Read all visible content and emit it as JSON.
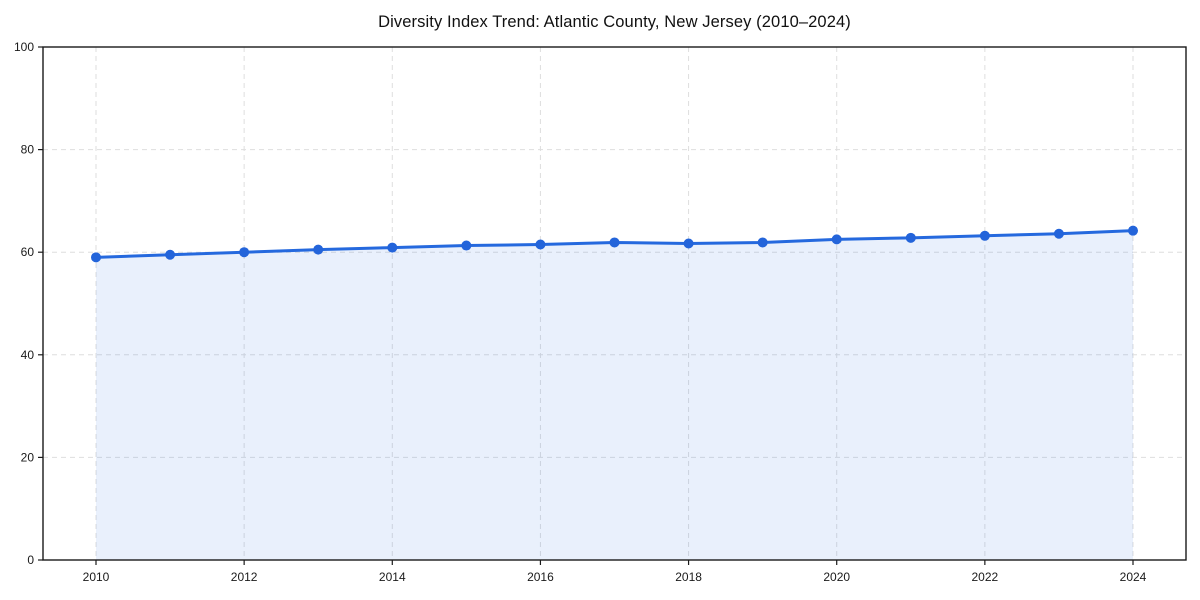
{
  "chart_data": {
    "type": "line",
    "title": "Diversity Index Trend: Atlantic County, New Jersey (2010–2024)",
    "x": [
      2010,
      2011,
      2012,
      2013,
      2014,
      2015,
      2016,
      2017,
      2018,
      2019,
      2020,
      2021,
      2022,
      2023,
      2024
    ],
    "values": [
      59.0,
      59.5,
      60.0,
      60.5,
      60.9,
      61.3,
      61.5,
      61.9,
      61.7,
      61.9,
      62.5,
      62.8,
      63.2,
      63.6,
      64.2
    ],
    "xlabel": "",
    "ylabel": "",
    "ylim": [
      0,
      100
    ],
    "xticks": [
      2010,
      2012,
      2014,
      2016,
      2018,
      2020,
      2022,
      2024
    ],
    "yticks": [
      0,
      20,
      40,
      60,
      80,
      100
    ],
    "grid": true,
    "grid_style": "dashed",
    "legend_position": "none",
    "area_fill_under_line": true,
    "colors": {
      "line": "#2569de",
      "marker": "#2364da",
      "fill": "rgba(37, 105, 222, 0.10)",
      "grid": "#dedede",
      "spine": "#1a1a1a",
      "tick_label": "#1a1a1a",
      "background": "#ffffff"
    }
  }
}
